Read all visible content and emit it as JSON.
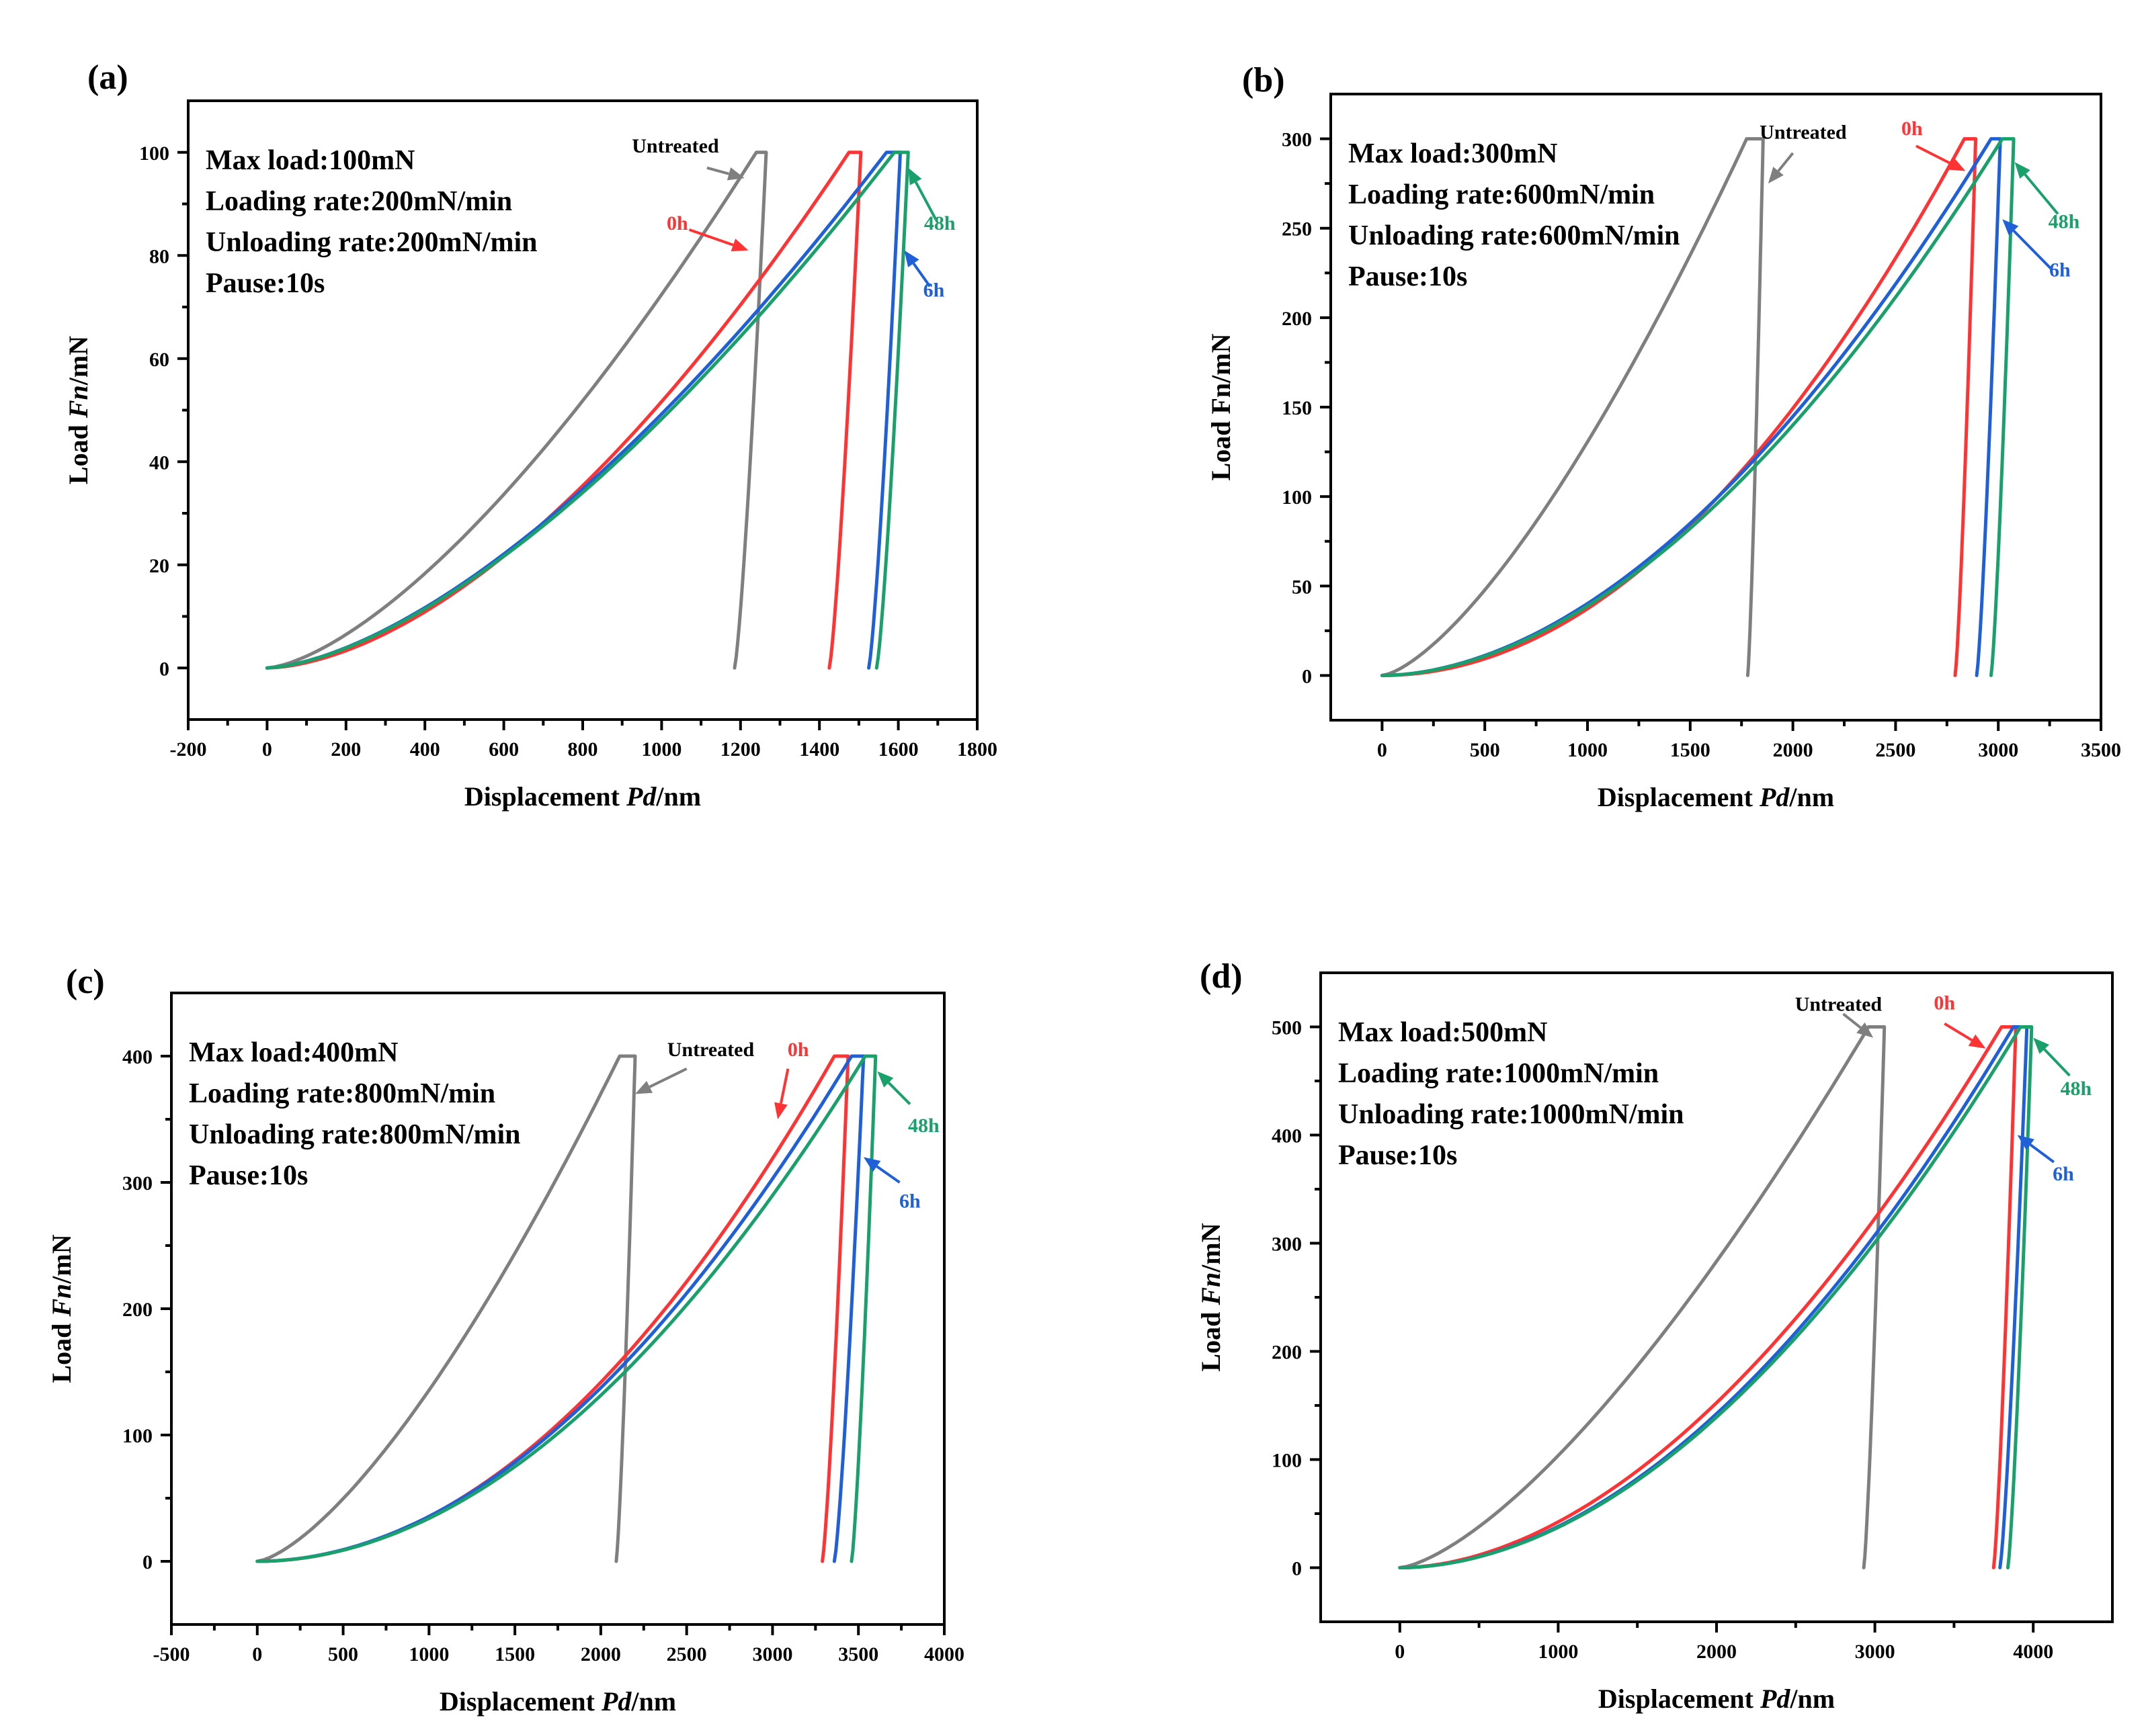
{
  "colors": {
    "Untreated": "#7f7f7f",
    "0h": "#ff3333",
    "6h": "#1f5fd8",
    "48h": "#1aa06b"
  },
  "chart_data": [
    {
      "type": "line",
      "panel_label": "(a)",
      "xlabel_prefix": "Displacement ",
      "xlabel_italic": "Pd",
      "xlabel_suffix": "/nm",
      "ylabel_prefix": "Load ",
      "ylabel_italic": "Fn",
      "ylabel_suffix": "/mN",
      "xlim": [
        -200,
        1800
      ],
      "ylim": [
        -10,
        110
      ],
      "xticks": [
        "-200",
        "0",
        "200",
        "400",
        "600",
        "800",
        "1000",
        "1200",
        "1400",
        "1600",
        "1800"
      ],
      "yticks": [
        "0",
        "20",
        "40",
        "60",
        "80",
        "100"
      ],
      "info": [
        "Max load:100mN",
        "Loading rate:200mN/min",
        "Unloading rate:200mN/min",
        "Pause:10s"
      ],
      "max_load": 100,
      "series": [
        {
          "name": "Untreated",
          "hmax": 1240,
          "hhold": 1265,
          "hf": 1185,
          "m": 1.5
        },
        {
          "name": "0h",
          "hmax": 1475,
          "hhold": 1505,
          "hf": 1425,
          "m": 1.7
        },
        {
          "name": "6h",
          "hmax": 1570,
          "hhold": 1605,
          "hf": 1525,
          "m": 1.57
        },
        {
          "name": "48h",
          "hmax": 1590,
          "hhold": 1625,
          "hf": 1545,
          "m": 1.57
        }
      ],
      "annotations": [
        {
          "text": "Untreated",
          "tx": 1035,
          "ty": 100,
          "ax": 1115,
          "ay": 97,
          "hx": 1210,
          "hy": 95,
          "series": "Untreated",
          "tcolor": "black"
        },
        {
          "text": "0h",
          "tx": 1040,
          "ty": 85,
          "ax": 1070,
          "ay": 85,
          "hx": 1220,
          "hy": 81,
          "series": "0h"
        },
        {
          "text": "6h",
          "tx": 1690,
          "ty": 72,
          "ax": 1680,
          "ay": 74,
          "hx": 1615,
          "hy": 81,
          "series": "6h"
        },
        {
          "text": "48h",
          "tx": 1705,
          "ty": 85,
          "ax": 1695,
          "ay": 87,
          "hx": 1625,
          "hy": 97,
          "series": "48h"
        }
      ]
    },
    {
      "type": "line",
      "panel_label": "(b)",
      "xlabel_prefix": "Displacement ",
      "xlabel_italic": "Pd",
      "xlabel_suffix": "/nm",
      "ylabel_prefix": "Load Fn/mN",
      "ylabel_italic": "",
      "ylabel_suffix": "",
      "xlim": [
        -250,
        3500
      ],
      "ylim": [
        -25,
        325
      ],
      "xticks": [
        "0",
        "500",
        "1000",
        "1500",
        "2000",
        "2500",
        "3000",
        "3500"
      ],
      "yticks": [
        "0",
        "50",
        "100",
        "150",
        "200",
        "250",
        "300"
      ],
      "info": [
        "Max load:300mN",
        "Loading rate:600mN/min",
        "Unloading rate:600mN/min",
        "Pause:10s"
      ],
      "max_load": 300,
      "series": [
        {
          "name": "Untreated",
          "hmax": 1775,
          "hhold": 1855,
          "hf": 1780,
          "m": 1.45
        },
        {
          "name": "0h",
          "hmax": 2835,
          "hhold": 2890,
          "hf": 2790,
          "m": 2.0
        },
        {
          "name": "6h",
          "hmax": 2965,
          "hhold": 3010,
          "hf": 2895,
          "m": 1.85
        },
        {
          "name": "48h",
          "hmax": 3020,
          "hhold": 3075,
          "hf": 2965,
          "m": 1.85
        }
      ],
      "annotations": [
        {
          "text": "Untreated",
          "tx": 2050,
          "ty": 300,
          "ax": 2000,
          "ay": 292,
          "hx": 1880,
          "hy": 275,
          "series": "Untreated",
          "tcolor": "black"
        },
        {
          "text": "0h",
          "tx": 2580,
          "ty": 302,
          "ax": 2600,
          "ay": 296,
          "hx": 2840,
          "hy": 282,
          "series": "0h"
        },
        {
          "text": "6h",
          "tx": 3300,
          "ty": 223,
          "ax": 3260,
          "ay": 227,
          "hx": 3020,
          "hy": 255,
          "series": "6h"
        },
        {
          "text": "48h",
          "tx": 3320,
          "ty": 250,
          "ax": 3290,
          "ay": 258,
          "hx": 3080,
          "hy": 287,
          "series": "48h"
        }
      ]
    },
    {
      "type": "line",
      "panel_label": "(c)",
      "xlabel_prefix": "Displacement ",
      "xlabel_italic": "Pd",
      "xlabel_suffix": "/nm",
      "ylabel_prefix": "Load ",
      "ylabel_italic": "Fn",
      "ylabel_suffix": "/mN",
      "xlim": [
        -500,
        4000
      ],
      "ylim": [
        -50,
        450
      ],
      "xticks": [
        "-500",
        "0",
        "500",
        "1000",
        "1500",
        "2000",
        "2500",
        "3000",
        "3500",
        "4000"
      ],
      "yticks": [
        "0",
        "100",
        "200",
        "300",
        "400"
      ],
      "info": [
        "Max load:400mN",
        "Loading rate:800mN/min",
        "Unloading rate:800mN/min",
        "Pause:10s"
      ],
      "max_load": 400,
      "series": [
        {
          "name": "Untreated",
          "hmax": 2110,
          "hhold": 2200,
          "hf": 2090,
          "m": 1.45
        },
        {
          "name": "0h",
          "hmax": 3360,
          "hhold": 3440,
          "hf": 3290,
          "m": 2.0
        },
        {
          "name": "6h",
          "hmax": 3460,
          "hhold": 3530,
          "hf": 3360,
          "m": 1.95
        },
        {
          "name": "48h",
          "hmax": 3540,
          "hhold": 3600,
          "hf": 3460,
          "m": 1.95
        }
      ],
      "annotations": [
        {
          "text": "Untreated",
          "tx": 2640,
          "ty": 400,
          "ax": 2500,
          "ay": 390,
          "hx": 2200,
          "hy": 370,
          "series": "Untreated",
          "tcolor": "black"
        },
        {
          "text": "0h",
          "tx": 3150,
          "ty": 400,
          "ax": 3090,
          "ay": 390,
          "hx": 3030,
          "hy": 350,
          "series": "0h"
        },
        {
          "text": "6h",
          "tx": 3800,
          "ty": 280,
          "ax": 3740,
          "ay": 300,
          "hx": 3530,
          "hy": 320,
          "series": "6h"
        },
        {
          "text": "48h",
          "tx": 3880,
          "ty": 340,
          "ax": 3800,
          "ay": 362,
          "hx": 3610,
          "hy": 388,
          "series": "48h"
        }
      ]
    },
    {
      "type": "line",
      "panel_label": "(d)",
      "xlabel_prefix": "Displacement ",
      "xlabel_italic": "Pd",
      "xlabel_suffix": "/nm",
      "ylabel_prefix": "Load ",
      "ylabel_italic": "Fn",
      "ylabel_suffix": "/mN",
      "xlim": [
        -500,
        4500
      ],
      "ylim": [
        -50,
        550
      ],
      "xticks": [
        "0",
        "1000",
        "2000",
        "3000",
        "4000"
      ],
      "yticks": [
        "0",
        "100",
        "200",
        "300",
        "400",
        "500"
      ],
      "info": [
        "Max load:500mN",
        "Loading rate:1000mN/min",
        "Unloading rate:1000mN/min",
        "Pause:10s"
      ],
      "max_load": 500,
      "series": [
        {
          "name": "Untreated",
          "hmax": 2960,
          "hhold": 3060,
          "hf": 2930,
          "m": 1.45
        },
        {
          "name": "0h",
          "hmax": 3800,
          "hhold": 3890,
          "hf": 3750,
          "m": 1.85
        },
        {
          "name": "6h",
          "hmax": 3875,
          "hhold": 3960,
          "hf": 3790,
          "m": 1.9
        },
        {
          "name": "48h",
          "hmax": 3920,
          "hhold": 3990,
          "hf": 3840,
          "m": 1.9
        }
      ],
      "annotations": [
        {
          "text": "Untreated",
          "tx": 2770,
          "ty": 515,
          "ax": 2800,
          "ay": 512,
          "hx": 2990,
          "hy": 490,
          "series": "Untreated",
          "tcolor": "black"
        },
        {
          "text": "0h",
          "tx": 3440,
          "ty": 516,
          "ax": 3440,
          "ay": 503,
          "hx": 3700,
          "hy": 480,
          "series": "0h"
        },
        {
          "text": "6h",
          "tx": 4190,
          "ty": 358,
          "ax": 4130,
          "ay": 375,
          "hx": 3900,
          "hy": 400,
          "series": "6h"
        },
        {
          "text": "48h",
          "tx": 4270,
          "ty": 437,
          "ax": 4230,
          "ay": 455,
          "hx": 4000,
          "hy": 490,
          "series": "48h"
        }
      ]
    }
  ]
}
